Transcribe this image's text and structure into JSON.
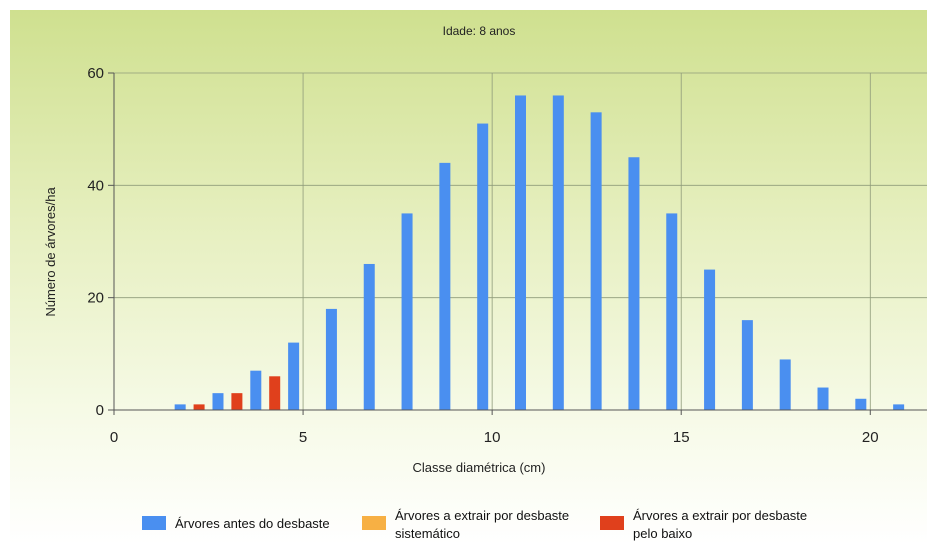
{
  "chart_data": {
    "type": "bar",
    "title": "Idade: 8 anos",
    "xlabel": "Classe diamétrica (cm)",
    "ylabel": "Número de árvores/ha",
    "xlim": [
      0,
      21.5
    ],
    "ylim": [
      0,
      60
    ],
    "xticks": [
      0,
      5,
      10,
      15,
      20
    ],
    "yticks": [
      0,
      20,
      40,
      60
    ],
    "grid": true,
    "legend_position": "bottom",
    "series": [
      {
        "name": "Árvores antes do desbaste",
        "color": "#4a8ff0",
        "points": [
          {
            "x": 1.75,
            "y": 1
          },
          {
            "x": 2.75,
            "y": 3
          },
          {
            "x": 3.75,
            "y": 7
          },
          {
            "x": 4.75,
            "y": 12
          },
          {
            "x": 5.75,
            "y": 18
          },
          {
            "x": 6.75,
            "y": 26
          },
          {
            "x": 7.75,
            "y": 35
          },
          {
            "x": 8.75,
            "y": 44
          },
          {
            "x": 9.75,
            "y": 51
          },
          {
            "x": 10.75,
            "y": 56
          },
          {
            "x": 11.75,
            "y": 56
          },
          {
            "x": 12.75,
            "y": 53
          },
          {
            "x": 13.75,
            "y": 45
          },
          {
            "x": 14.75,
            "y": 35
          },
          {
            "x": 15.75,
            "y": 25
          },
          {
            "x": 16.75,
            "y": 16
          },
          {
            "x": 17.75,
            "y": 9
          },
          {
            "x": 18.75,
            "y": 4
          },
          {
            "x": 19.75,
            "y": 2
          },
          {
            "x": 20.75,
            "y": 1
          }
        ]
      },
      {
        "name": "Árvores a extrair por desbaste sistemático",
        "color": "#f7b044",
        "points": []
      },
      {
        "name": "Árvores a extrair por desbaste pelo baixo",
        "color": "#e0401c",
        "points": [
          {
            "x": 2.25,
            "y": 1
          },
          {
            "x": 3.25,
            "y": 3
          },
          {
            "x": 4.25,
            "y": 6
          }
        ]
      }
    ]
  },
  "legend": [
    {
      "color": "#4a8ff0",
      "line1": "Árvores antes do desbaste",
      "line2": ""
    },
    {
      "color": "#f7b044",
      "line1": "Árvores a extrair por desbaste",
      "line2": "sistemático"
    },
    {
      "color": "#e0401c",
      "line1": "Árvores a extrair por desbaste",
      "line2": "pelo baixo"
    }
  ]
}
